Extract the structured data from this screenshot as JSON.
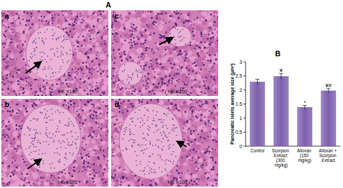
{
  "figure": {
    "panel_a": {
      "label": "A",
      "images": [
        {
          "label": "a",
          "caption": "HE X100"
        },
        {
          "label": "b",
          "caption": "HE X100"
        },
        {
          "label": "c",
          "caption": "HE X100"
        },
        {
          "label": "d",
          "caption": "HE X100"
        }
      ]
    },
    "panel_b": {
      "label": "B"
    }
  },
  "chart_data": {
    "type": "bar",
    "y_label": "Pancreatic islets average size (μm²)",
    "categories": [
      "Control",
      "Scorpion Extract (300 mg/kg)",
      "Alloxan (150 mg/kg)",
      "Alloxan + Scorpion Extract"
    ],
    "values": [
      2.28,
      2.48,
      1.38,
      1.97
    ],
    "errors": [
      0.1,
      0.1,
      0.07,
      0.08
    ],
    "annotations": [
      null,
      "¥",
      "*",
      "¥#"
    ],
    "color": "#7d5fae",
    "ylim": [
      0,
      3
    ],
    "yticks": [
      0,
      0.5,
      1,
      1.5,
      2,
      2.5,
      3
    ],
    "grid": false
  }
}
